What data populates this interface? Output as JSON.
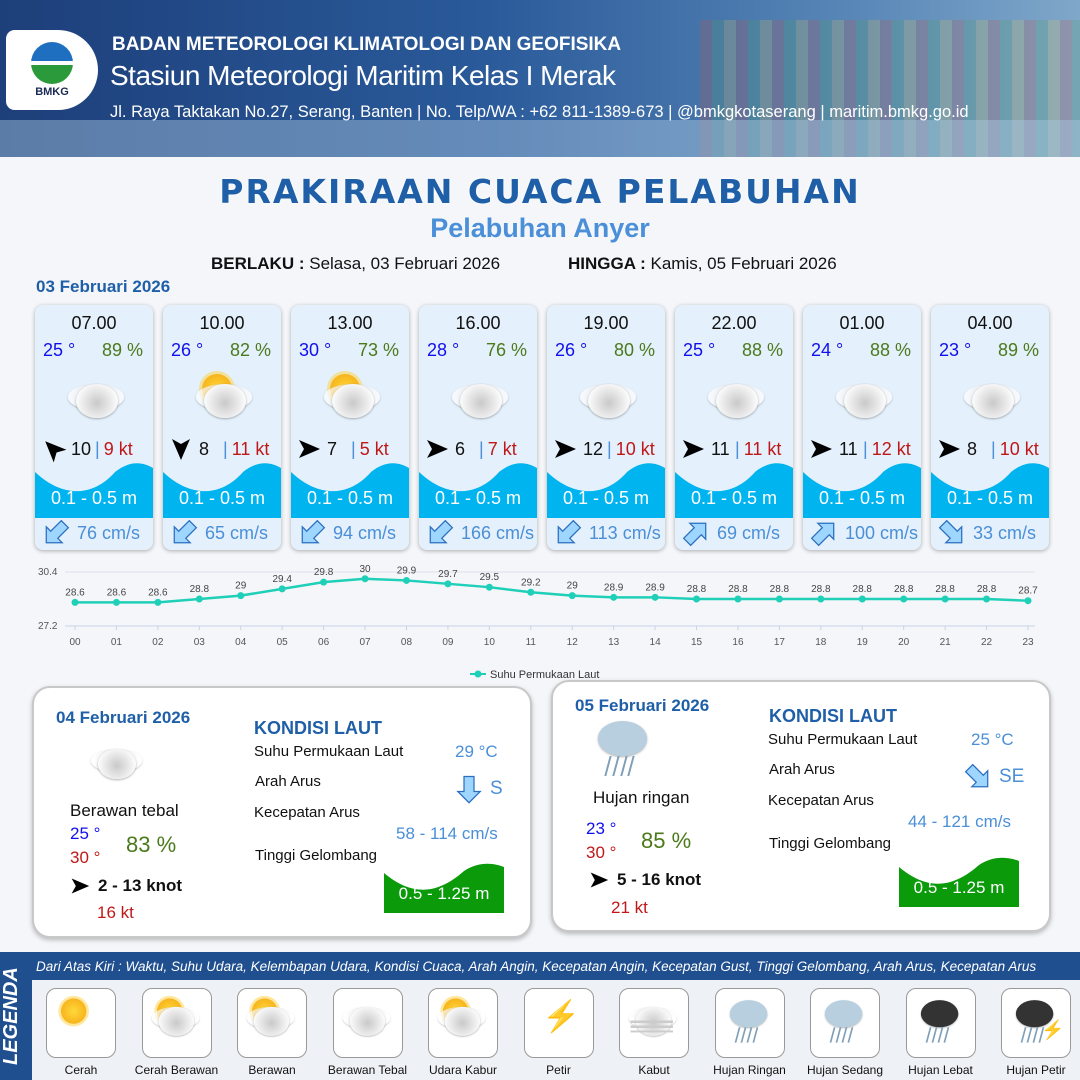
{
  "header": {
    "agency": "BADAN METEOROLOGI KLIMATOLOGI DAN GEOFISIKA",
    "station": "Stasiun Meteorologi Maritim Kelas I Merak",
    "contact": "Jl. Raya Taktakan No.27, Serang, Banten | No. Telp/WA : +62 811-1389-673 | @bmkgkotaserang | maritim.bmkg.go.id",
    "logo_text": "BMKG"
  },
  "title": "PRAKIRAAN CUACA PELABUHAN",
  "subtitle": "Pelabuhan Anyer",
  "validity": {
    "from_label": "BERLAKU :",
    "from": "Selasa, 03 Februari 2026",
    "to_label": "HINGGA :",
    "to": "Kamis, 05 Februari 2026"
  },
  "day1": {
    "date": "03 Februari 2026",
    "cards": [
      {
        "time": "07.00",
        "temp": "25 °",
        "rh": "89 %",
        "weather": "berawan-tebal",
        "wind_dir_deg": 315,
        "wind": "10",
        "gust": "9 kt",
        "wave": "0.1 - 0.5 m",
        "current_dir_deg": 225,
        "current": "76 cm/s"
      },
      {
        "time": "10.00",
        "temp": "26 °",
        "rh": "82 %",
        "weather": "cerah-berawan",
        "wind_dir_deg": 180,
        "wind": "8",
        "gust": "11 kt",
        "wave": "0.1 - 0.5 m",
        "current_dir_deg": 225,
        "current": "65 cm/s"
      },
      {
        "time": "13.00",
        "temp": "30 °",
        "rh": "73 %",
        "weather": "berawan",
        "wind_dir_deg": 90,
        "wind": "7",
        "gust": "5 kt",
        "wave": "0.1 - 0.5 m",
        "current_dir_deg": 225,
        "current": "94 cm/s"
      },
      {
        "time": "16.00",
        "temp": "28 °",
        "rh": "76 %",
        "weather": "berawan-tebal",
        "wind_dir_deg": 90,
        "wind": "6",
        "gust": "7 kt",
        "wave": "0.1 - 0.5 m",
        "current_dir_deg": 225,
        "current": "166 cm/s"
      },
      {
        "time": "19.00",
        "temp": "26 °",
        "rh": "80 %",
        "weather": "berawan-tebal",
        "wind_dir_deg": 90,
        "wind": "12",
        "gust": "10 kt",
        "wave": "0.1 - 0.5 m",
        "current_dir_deg": 225,
        "current": "113 cm/s"
      },
      {
        "time": "22.00",
        "temp": "25 °",
        "rh": "88 %",
        "weather": "berawan-tebal",
        "wind_dir_deg": 90,
        "wind": "11",
        "gust": "11 kt",
        "wave": "0.1 - 0.5 m",
        "current_dir_deg": 45,
        "current": "69 cm/s"
      },
      {
        "time": "01.00",
        "temp": "24 °",
        "rh": "88 %",
        "weather": "berawan-tebal",
        "wind_dir_deg": 90,
        "wind": "11",
        "gust": "12 kt",
        "wave": "0.1 - 0.5 m",
        "current_dir_deg": 45,
        "current": "100 cm/s"
      },
      {
        "time": "04.00",
        "temp": "23 °",
        "rh": "89 %",
        "weather": "berawan-tebal",
        "wind_dir_deg": 90,
        "wind": "8",
        "gust": "10 kt",
        "wave": "0.1 - 0.5 m",
        "current_dir_deg": 135,
        "current": "33 cm/s"
      }
    ]
  },
  "chart_data": {
    "type": "line",
    "x": [
      "00",
      "01",
      "02",
      "03",
      "04",
      "05",
      "06",
      "07",
      "08",
      "09",
      "10",
      "11",
      "12",
      "13",
      "14",
      "15",
      "16",
      "17",
      "18",
      "19",
      "20",
      "21",
      "22",
      "23"
    ],
    "series": [
      {
        "name": "Suhu Permukaan Laut",
        "values": [
          28.6,
          28.6,
          28.6,
          28.8,
          29.0,
          29.4,
          29.8,
          30.0,
          29.9,
          29.7,
          29.5,
          29.2,
          29.0,
          28.9,
          28.9,
          28.8,
          28.8,
          28.8,
          28.8,
          28.8,
          28.8,
          28.8,
          28.8,
          28.7
        ]
      }
    ],
    "ylim": [
      27.2,
      30.4
    ],
    "yticks": [
      "30.4",
      "27.2"
    ],
    "legend": "bottom",
    "color": "#1fcfb8",
    "data_labels": true
  },
  "days": [
    {
      "date": "04 Februari 2026",
      "weather": "Berawan tebal",
      "tmin": "25 °",
      "tmax": "30 °",
      "rh": "83 %",
      "wind": "2  - 13 knot",
      "gust": "16 kt",
      "sea_title": "KONDISI LAUT",
      "sst_label": "Suhu Permukaan Laut",
      "sst": "29 °C",
      "cur_dir_label": "Arah Arus",
      "cur_dir": "S",
      "cur_dir_deg": 180,
      "cur_speed_label": "Kecepatan Arus",
      "cur_speed": "58 - 114 cm/s",
      "wave_label": "Tinggi Gelombang",
      "wave": "0.5 - 1.25 m"
    },
    {
      "date": "05 Februari 2026",
      "weather": "Hujan ringan",
      "tmin": "23 °",
      "tmax": "30 °",
      "rh": "85 %",
      "wind": "5  - 16 knot",
      "gust": "21 kt",
      "sea_title": "KONDISI LAUT",
      "sst_label": "Suhu Permukaan Laut",
      "sst": "25 °C",
      "cur_dir_label": "Arah Arus",
      "cur_dir": "SE",
      "cur_dir_deg": 135,
      "cur_speed_label": "Kecepatan Arus",
      "cur_speed": "44  - 121 cm/s",
      "wave_label": "Tinggi Gelombang",
      "wave": "0.5 - 1.25 m"
    }
  ],
  "legend": {
    "title": "LEGENDA",
    "description": "Dari Atas Kiri : Waktu, Suhu Udara, Kelembapan Udara, Kondisi Cuaca, Arah Angin, Kecepatan Angin, Kecepatan Gust, Tinggi Gelombang, Arah Arus, Kecepatan Arus",
    "items": [
      "Cerah",
      "Cerah Berawan",
      "Berawan",
      "Berawan Tebal",
      "Udara Kabur",
      "Petir",
      "Kabut",
      "Hujan Ringan",
      "Hujan Sedang",
      "Hujan Lebat",
      "Hujan Petir"
    ]
  },
  "colors": {
    "temp": "#1010ee",
    "rh": "#4a7a1a",
    "gust": "#c01818",
    "wave": "#00b4f0",
    "wave_daily": "#0a9a0a",
    "title": "#1f5fa8"
  }
}
